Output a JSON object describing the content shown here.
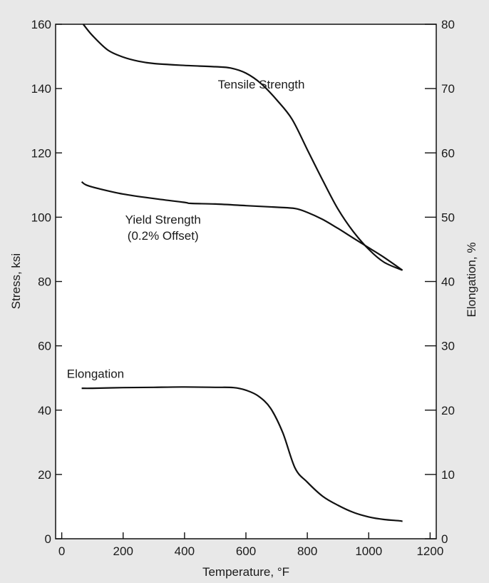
{
  "chart_data": {
    "type": "line",
    "xlabel": "Temperature, °F",
    "ylabel": "Stress, ksi",
    "y2label": "Elongation, %",
    "xlim": [
      -20,
      1220
    ],
    "ylim": [
      0,
      160
    ],
    "y2lim": [
      0,
      80
    ],
    "xticks": [
      0,
      200,
      400,
      600,
      800,
      1000,
      1200
    ],
    "yticks": [
      0,
      20,
      40,
      60,
      80,
      100,
      120,
      140,
      160
    ],
    "y2ticks": [
      0,
      10,
      20,
      30,
      40,
      50,
      60,
      70,
      80
    ],
    "grid": false,
    "background": "#ffffff",
    "frame_color": "#e8e8e8",
    "line_color": "#111111",
    "series": [
      {
        "name": "Tensile Strength",
        "axis": "left",
        "x": [
          70,
          100,
          150,
          200,
          250,
          300,
          400,
          500,
          550,
          600,
          650,
          700,
          750,
          800,
          850,
          900,
          950,
          1000,
          1050,
          1110
        ],
        "y": [
          160,
          156.5,
          152,
          149.8,
          148.5,
          147.8,
          147.2,
          146.8,
          146.4,
          144.8,
          141.5,
          136.5,
          130.5,
          121,
          111.5,
          102.5,
          95.5,
          90,
          86,
          83.5
        ]
      },
      {
        "name": "Yield Strength (0.2% Offset)",
        "axis": "left",
        "x": [
          65,
          80,
          120,
          200,
          300,
          400,
          420,
          500,
          600,
          700,
          760,
          800,
          850,
          900,
          950,
          1000,
          1050,
          1110
        ],
        "y": [
          111,
          110,
          108.9,
          107.2,
          105.8,
          104.6,
          104.3,
          104.1,
          103.6,
          103.1,
          102.7,
          101.5,
          99.3,
          96.5,
          93.5,
          90.5,
          87.5,
          83.5
        ]
      },
      {
        "name": "Elongation",
        "axis": "right",
        "x": [
          65,
          100,
          200,
          300,
          400,
          500,
          560,
          600,
          640,
          680,
          720,
          760,
          800,
          850,
          900,
          950,
          1000,
          1050,
          1100,
          1110
        ],
        "y": [
          23.4,
          23.4,
          23.5,
          23.55,
          23.6,
          23.55,
          23.5,
          23.1,
          22.2,
          20.3,
          16.5,
          11,
          8.8,
          6.6,
          5.2,
          4.1,
          3.4,
          3,
          2.8,
          2.7
        ]
      }
    ],
    "annotations": [
      {
        "text": "Tensile Strength",
        "x": 650,
        "y": 140
      },
      {
        "text": "Yield Strength",
        "x": 330,
        "y": 98
      },
      {
        "text": "(0.2% Offset)",
        "x": 330,
        "y": 93
      },
      {
        "text": "Elongation",
        "x": 110,
        "y": 50
      }
    ]
  }
}
